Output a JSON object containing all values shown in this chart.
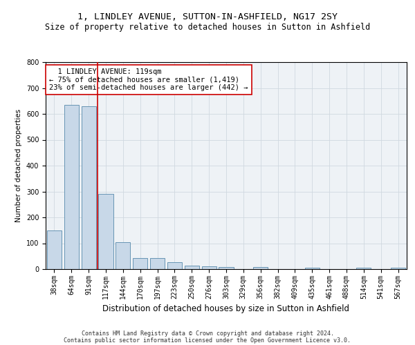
{
  "title": "1, LINDLEY AVENUE, SUTTON-IN-ASHFIELD, NG17 2SY",
  "subtitle": "Size of property relative to detached houses in Sutton in Ashfield",
  "xlabel": "Distribution of detached houses by size in Sutton in Ashfield",
  "ylabel": "Number of detached properties",
  "categories": [
    "38sqm",
    "64sqm",
    "91sqm",
    "117sqm",
    "144sqm",
    "170sqm",
    "197sqm",
    "223sqm",
    "250sqm",
    "276sqm",
    "303sqm",
    "329sqm",
    "356sqm",
    "382sqm",
    "409sqm",
    "435sqm",
    "461sqm",
    "488sqm",
    "514sqm",
    "541sqm",
    "567sqm"
  ],
  "values": [
    150,
    635,
    630,
    290,
    103,
    44,
    42,
    27,
    13,
    10,
    9,
    0,
    9,
    0,
    0,
    5,
    0,
    0,
    5,
    0,
    5
  ],
  "bar_color": "#c8d8e8",
  "bar_edge_color": "#5588aa",
  "vline_index": 3,
  "vline_color": "#cc0000",
  "annotation_line1": "  1 LINDLEY AVENUE: 119sqm",
  "annotation_line2": "← 75% of detached houses are smaller (1,419)",
  "annotation_line3": "23% of semi-detached houses are larger (442) →",
  "annotation_box_color": "#ffffff",
  "annotation_box_edge_color": "#cc0000",
  "ylim": [
    0,
    800
  ],
  "yticks": [
    0,
    100,
    200,
    300,
    400,
    500,
    600,
    700,
    800
  ],
  "grid_color": "#d0d8e0",
  "bg_color": "#eef2f6",
  "footer_line1": "Contains HM Land Registry data © Crown copyright and database right 2024.",
  "footer_line2": "Contains public sector information licensed under the Open Government Licence v3.0.",
  "title_fontsize": 9.5,
  "subtitle_fontsize": 8.5,
  "xlabel_fontsize": 8.5,
  "ylabel_fontsize": 7.5,
  "tick_fontsize": 7,
  "annotation_fontsize": 7.5,
  "footer_fontsize": 6
}
